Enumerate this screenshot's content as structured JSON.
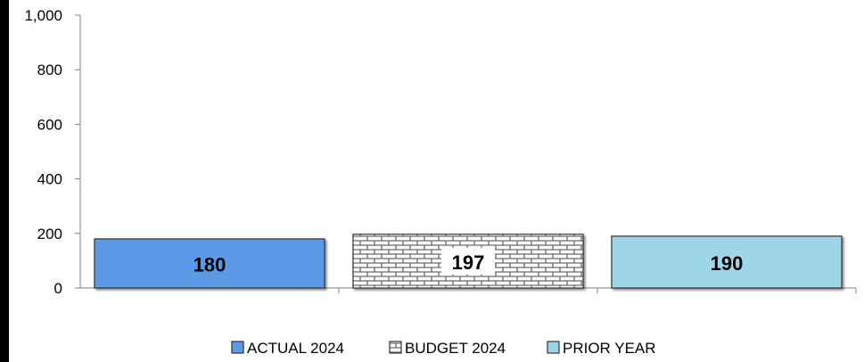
{
  "chart_data": {
    "type": "bar",
    "categories": [
      "ACTUAL 2024",
      "BUDGET 2024",
      "PRIOR YEAR"
    ],
    "values": [
      180,
      197,
      190
    ],
    "data_labels": [
      "180",
      "197",
      "190"
    ],
    "ylim": [
      0,
      1000
    ],
    "yticks": [
      0,
      200,
      400,
      600,
      800,
      1000
    ],
    "ytick_labels": [
      "0",
      "200",
      "400",
      "600",
      "800",
      "1,000"
    ],
    "grid": false,
    "legend_position": "bottom",
    "legend": [
      "ACTUAL 2024",
      "BUDGET 2024",
      "PRIOR YEAR"
    ],
    "colors": {
      "actual": "#5a9ae6",
      "budget_fill": "#ffffff",
      "budget_pattern": "#6a6a6a",
      "prior": "#9dd6e8",
      "outline": "#333333"
    }
  }
}
